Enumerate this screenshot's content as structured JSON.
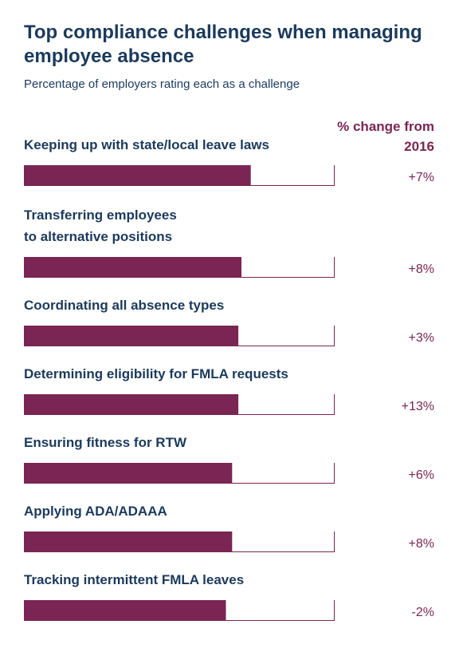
{
  "header": {
    "title": "Top compliance challenges when managing employee absence",
    "subtitle": "Percentage of employers rating each as a challenge",
    "change_header": "% change from 2016"
  },
  "colors": {
    "bar": "#7a2553",
    "track": "#7a2553",
    "label": "#1b3a5c",
    "change": "#7a2553"
  },
  "chart_data": {
    "type": "bar",
    "orientation": "horizontal",
    "categories": [
      [
        "Keeping up with state/local leave laws"
      ],
      [
        "Transferring employees",
        "to alternative positions"
      ],
      [
        "Coordinating all absence types"
      ],
      [
        "Determining eligibility for FMLA requests"
      ],
      [
        "Ensuring fitness for RTW"
      ],
      [
        "Applying ADA/ADAAA"
      ],
      [
        "Tracking intermittent FMLA leaves"
      ]
    ],
    "values": [
      73,
      70,
      69,
      69,
      67,
      67,
      65
    ],
    "change_labels": [
      "+7%",
      "+8%",
      "+3%",
      "+13%",
      "+6%",
      "+8%",
      "-2%"
    ],
    "xlim": [
      0,
      100
    ],
    "grid": false,
    "legend": "none"
  }
}
